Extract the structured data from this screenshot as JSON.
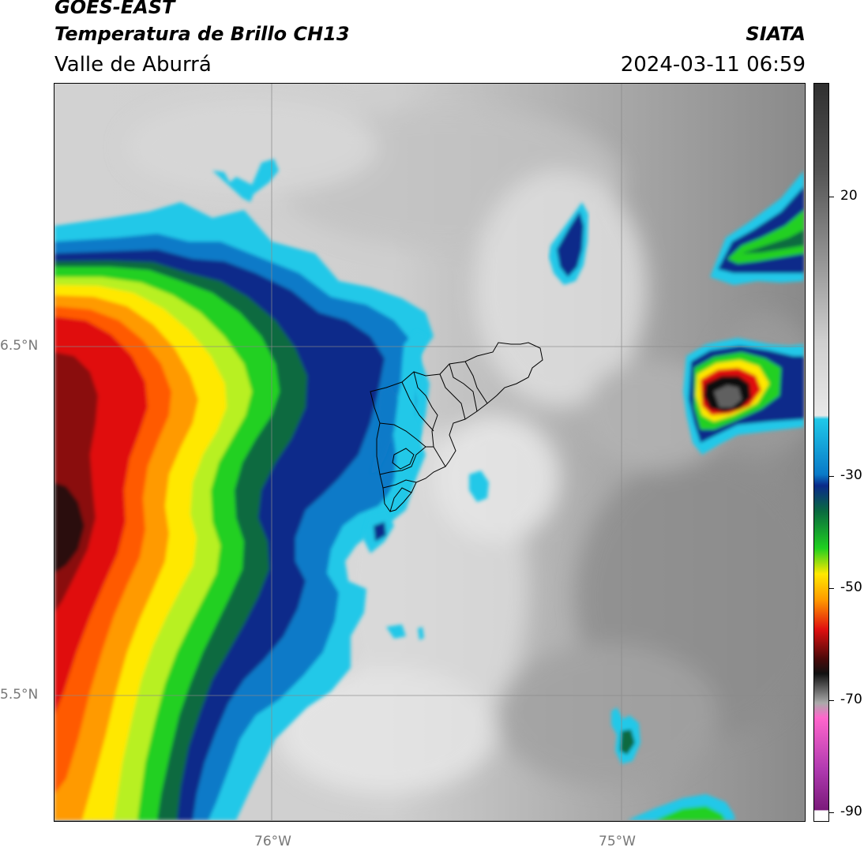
{
  "header": {
    "satellite": "GOES-EAST",
    "product": "Temperatura de Brillo CH13",
    "region": "Valle de Aburrá",
    "agency": "SIATA",
    "datetime": "2024-03-11 06:59"
  },
  "map": {
    "lat_labels": [
      "6.5°N",
      "5.5°N"
    ],
    "lon_labels": [
      "76°W",
      "75°W"
    ]
  },
  "colorbar": {
    "tick_labels": [
      "20",
      "-30",
      "-50",
      "-70",
      "-90"
    ],
    "range": [
      -90,
      30
    ],
    "colors": {
      "cold_white": "#ffffff",
      "magenta": "#b03ab0",
      "black": "#111111",
      "red": "#e01010",
      "orange": "#ff9a00",
      "yellow": "#ffe800",
      "green": "#20d020",
      "dark_green": "#0a6a40",
      "dark_blue": "#0a2a8a",
      "light_blue": "#20c8e8",
      "light_gray": "#e8e8e8",
      "dark_gray": "#303030"
    }
  }
}
